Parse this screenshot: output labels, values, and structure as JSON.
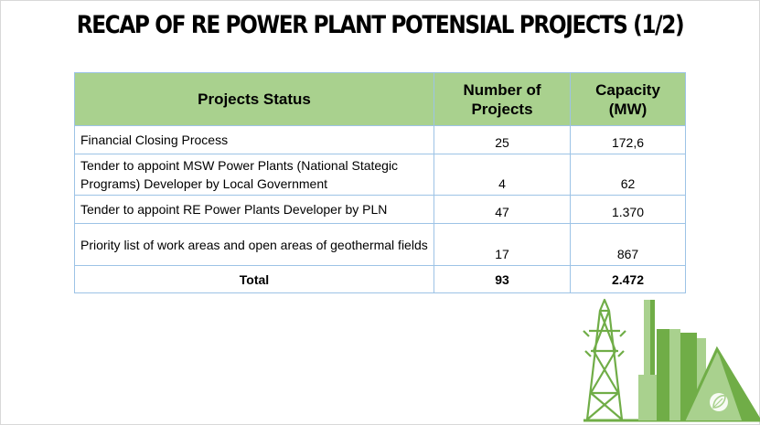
{
  "title": "RECAP OF RE POWER PLANT POTENSIAL PROJECTS (1/2)",
  "table": {
    "headers": {
      "status": "Projects Status",
      "number_line1": "Number of",
      "number_line2": "Projects",
      "capacity_line1": "Capacity",
      "capacity_line2": "(MW)"
    },
    "rows": [
      {
        "status": "Financial Closing Process",
        "number": "25",
        "capacity": "172,6"
      },
      {
        "status": "Tender to appoint MSW Power Plants (National Stategic Programs) Developer by Local Government",
        "number": "4",
        "capacity": "62"
      },
      {
        "status": "Tender to appoint RE Power Plants Developer by PLN",
        "number": "47",
        "capacity": "1.370"
      },
      {
        "status": "Priority list of work areas and open areas of geothermal fields",
        "number": "17",
        "capacity": "867"
      }
    ],
    "total": {
      "label": "Total",
      "number": "93",
      "capacity": "2.472"
    }
  },
  "colors": {
    "header_fill": "#a9d18e",
    "table_border": "#9dc3e6",
    "illustration_green": "#70ad47",
    "illustration_light_green": "#a9d18e"
  }
}
